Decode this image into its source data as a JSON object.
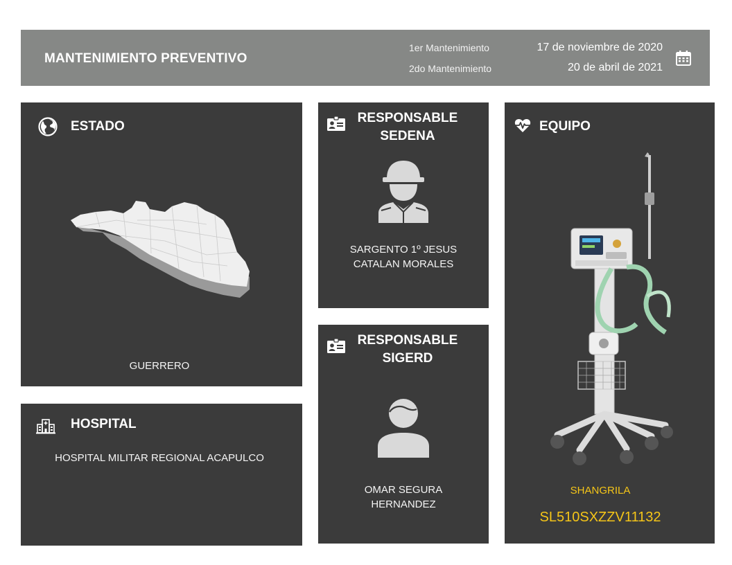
{
  "header": {
    "title": "MANTENIMIENTO PREVENTIVO",
    "first_label": "1er Mantenimiento",
    "second_label": "2do Mantenimiento",
    "first_date": "17 de noviembre de 2020",
    "second_date": "20 de abril de 2021",
    "icon": "calendar-icon"
  },
  "estado": {
    "title": "ESTADO",
    "icon": "globe-icon",
    "value": "GUERRERO"
  },
  "hospital": {
    "title": "HOSPITAL",
    "icon": "hospital-icon",
    "value": "HOSPITAL MILITAR REGIONAL ACAPULCO"
  },
  "responsable_sedena": {
    "title_line1": "RESPONSABLE",
    "title_line2": "SEDENA",
    "icon": "id-card-icon",
    "avatar": "soldier-icon",
    "name_line1": "SARGENTO 1º JESUS",
    "name_line2": "CATALAN MORALES"
  },
  "responsable_sigerd": {
    "title_line1": "RESPONSABLE",
    "title_line2": "SIGERD",
    "icon": "id-card-icon",
    "avatar": "person-icon",
    "name_line1": "OMAR SEGURA",
    "name_line2": "HERNANDEZ"
  },
  "equipo": {
    "title": "EQUIPO",
    "icon": "heart-pulse-icon",
    "brand": "SHANGRILA",
    "serial": "SL510SXZZV11132",
    "accent_color": "#f5c518"
  },
  "colors": {
    "header_bg": "#868886",
    "card_bg": "#3b3b3b",
    "accent": "#f5c518"
  }
}
